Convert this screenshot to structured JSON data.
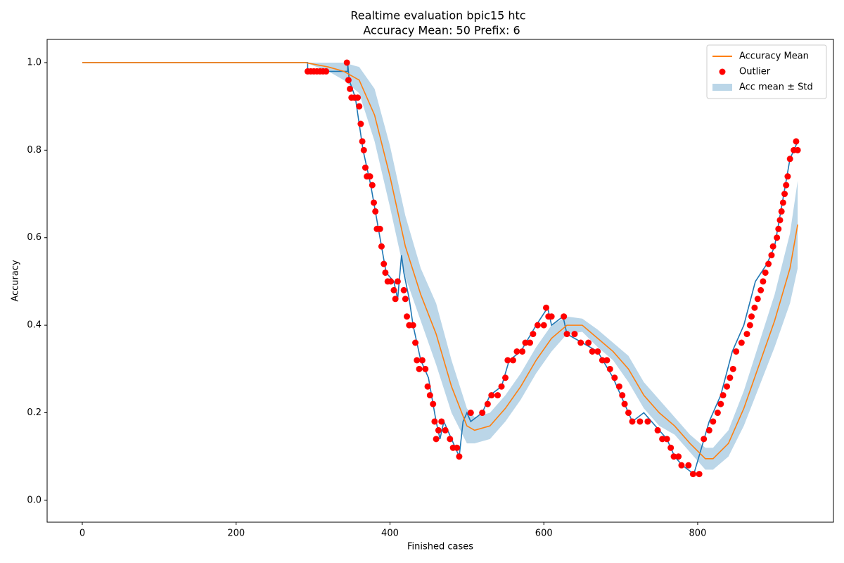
{
  "chart_data": {
    "type": "line",
    "title": "Realtime evaluation bpic15 htc",
    "subtitle": "Accuracy Mean: 50 Prefix: 6",
    "x_label": "Finished cases",
    "y_label": "Accuracy",
    "xlim": [
      -45.7,
      976.5
    ],
    "ylim": [
      -0.05,
      1.053
    ],
    "xticks": [
      0,
      200,
      400,
      600,
      800
    ],
    "yticks": [
      {
        "value": 0,
        "label": "0.0"
      },
      0.2,
      0.4,
      0.6,
      0.8,
      {
        "value": 1,
        "label": "1.0"
      }
    ],
    "legend": "upper right",
    "series": [
      {
        "name": "Accuracy Mean",
        "type": "line",
        "color": "#ff7f0e",
        "x": [
          0,
          290,
          320,
          340,
          360,
          380,
          400,
          420,
          440,
          460,
          480,
          500,
          510,
          530,
          550,
          570,
          590,
          610,
          630,
          650,
          670,
          690,
          710,
          730,
          750,
          770,
          790,
          810,
          820,
          840,
          860,
          880,
          900,
          920,
          930
        ],
        "values": [
          1,
          1,
          0.99,
          0.98,
          0.96,
          0.88,
          0.74,
          0.58,
          0.47,
          0.38,
          0.26,
          0.17,
          0.16,
          0.17,
          0.21,
          0.26,
          0.32,
          0.37,
          0.4,
          0.4,
          0.37,
          0.34,
          0.3,
          0.24,
          0.2,
          0.17,
          0.13,
          0.095,
          0.095,
          0.13,
          0.21,
          0.31,
          0.41,
          0.53,
          0.63
        ]
      },
      {
        "name": "Outlier",
        "type": "scatter",
        "color": "#ff0000",
        "x": [
          293,
          297,
          301,
          305,
          309,
          313,
          317,
          344,
          346,
          348,
          350,
          354,
          358,
          360,
          362,
          364,
          366,
          368,
          370,
          374,
          377,
          379,
          381,
          383,
          387,
          389,
          392,
          394,
          397,
          401,
          405,
          407,
          410,
          418,
          420,
          422,
          425,
          430,
          433,
          435,
          438,
          442,
          446,
          449,
          452,
          456,
          458,
          460,
          463,
          467,
          472,
          478,
          482,
          487,
          490,
          505,
          520,
          527,
          532,
          540,
          545,
          550,
          553,
          560,
          565,
          572,
          576,
          582,
          586,
          592,
          600,
          603,
          606,
          610,
          626,
          630,
          640,
          648,
          658,
          663,
          670,
          676,
          682,
          686,
          692,
          698,
          702,
          705,
          710,
          715,
          725,
          735,
          748,
          754,
          760,
          765,
          769,
          775,
          779,
          788,
          794,
          802,
          808,
          815,
          820,
          826,
          830,
          833,
          838,
          842,
          846,
          850,
          857,
          864,
          868,
          870,
          874,
          878,
          882,
          885,
          888,
          892,
          896,
          898,
          903,
          905,
          907,
          909,
          911,
          913,
          915,
          917,
          920,
          925,
          928,
          930
        ],
        "values": [
          0.98,
          0.98,
          0.98,
          0.98,
          0.98,
          0.98,
          0.98,
          1.0,
          0.96,
          0.94,
          0.92,
          0.92,
          0.92,
          0.9,
          0.86,
          0.82,
          0.8,
          0.76,
          0.74,
          0.74,
          0.72,
          0.68,
          0.66,
          0.62,
          0.62,
          0.58,
          0.54,
          0.52,
          0.5,
          0.5,
          0.48,
          0.46,
          0.5,
          0.48,
          0.46,
          0.42,
          0.4,
          0.4,
          0.36,
          0.32,
          0.3,
          0.32,
          0.3,
          0.26,
          0.24,
          0.22,
          0.18,
          0.14,
          0.16,
          0.18,
          0.16,
          0.14,
          0.12,
          0.12,
          0.1,
          0.2,
          0.2,
          0.22,
          0.24,
          0.24,
          0.26,
          0.28,
          0.32,
          0.32,
          0.34,
          0.34,
          0.36,
          0.36,
          0.38,
          0.4,
          0.4,
          0.44,
          0.42,
          0.42,
          0.42,
          0.38,
          0.38,
          0.36,
          0.36,
          0.34,
          0.34,
          0.32,
          0.32,
          0.3,
          0.28,
          0.26,
          0.24,
          0.22,
          0.2,
          0.18,
          0.18,
          0.18,
          0.16,
          0.14,
          0.14,
          0.12,
          0.1,
          0.1,
          0.08,
          0.08,
          0.06,
          0.06,
          0.14,
          0.16,
          0.18,
          0.2,
          0.22,
          0.24,
          0.26,
          0.28,
          0.3,
          0.34,
          0.36,
          0.38,
          0.4,
          0.42,
          0.44,
          0.46,
          0.48,
          0.5,
          0.52,
          0.54,
          0.56,
          0.58,
          0.6,
          0.62,
          0.64,
          0.66,
          0.68,
          0.7,
          0.72,
          0.74,
          0.78,
          0.8,
          0.82,
          0.8
        ]
      },
      {
        "name": "Acc mean ± Std",
        "type": "band",
        "color": "#1f77b4",
        "x": [
          290,
          320,
          340,
          360,
          380,
          400,
          420,
          440,
          460,
          480,
          500,
          510,
          530,
          550,
          570,
          590,
          610,
          630,
          650,
          670,
          690,
          710,
          730,
          750,
          770,
          790,
          810,
          820,
          840,
          860,
          880,
          900,
          920,
          930
        ],
        "values": [
          0,
          0.01,
          0.02,
          0.03,
          0.06,
          0.07,
          0.07,
          0.06,
          0.07,
          0.06,
          0.04,
          0.03,
          0.03,
          0.03,
          0.03,
          0.03,
          0.03,
          0.02,
          0.015,
          0.02,
          0.02,
          0.03,
          0.03,
          0.03,
          0.02,
          0.02,
          0.025,
          0.025,
          0.03,
          0.04,
          0.05,
          0.06,
          0.08,
          0.1
        ]
      },
      {
        "type": "line",
        "color": "#1f77b4",
        "x": [
          0,
          293,
          293,
          345,
          345,
          347,
          355,
          365,
          375,
          385,
          395,
          405,
          410,
          415,
          418,
          425,
          430,
          440,
          450,
          460,
          465,
          470,
          480,
          490,
          495,
          500,
          505,
          520,
          530,
          545,
          555,
          570,
          590,
          605,
          610,
          625,
          630,
          650,
          670,
          690,
          705,
          715,
          730,
          740,
          750,
          760,
          770,
          780,
          795,
          805,
          815,
          830,
          845,
          860,
          875,
          890,
          900,
          910,
          920,
          930
        ],
        "values": [
          1,
          1,
          0.98,
          0.98,
          1.0,
          0.96,
          0.92,
          0.8,
          0.72,
          0.62,
          0.52,
          0.5,
          0.46,
          0.56,
          0.52,
          0.46,
          0.4,
          0.32,
          0.28,
          0.18,
          0.14,
          0.18,
          0.14,
          0.1,
          0.18,
          0.2,
          0.18,
          0.2,
          0.24,
          0.26,
          0.32,
          0.34,
          0.4,
          0.44,
          0.4,
          0.42,
          0.38,
          0.36,
          0.34,
          0.28,
          0.22,
          0.18,
          0.2,
          0.18,
          0.16,
          0.14,
          0.1,
          0.08,
          0.06,
          0.12,
          0.18,
          0.24,
          0.34,
          0.4,
          0.5,
          0.54,
          0.58,
          0.68,
          0.78,
          0.82
        ]
      }
    ]
  }
}
